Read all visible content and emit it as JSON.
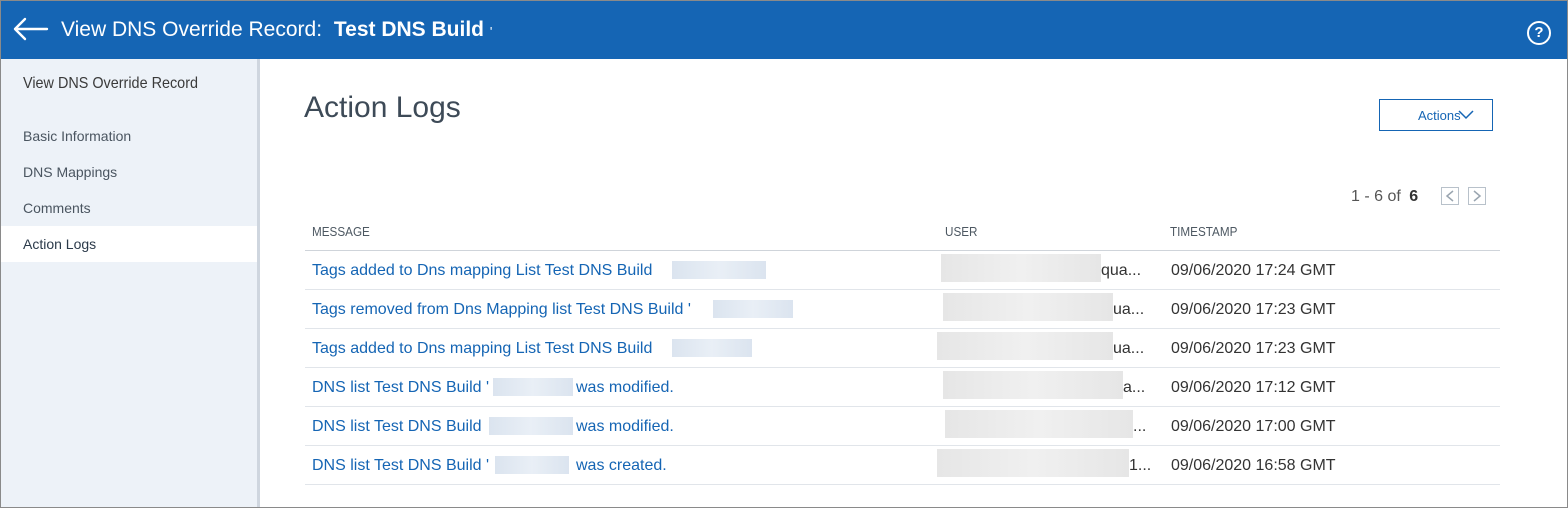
{
  "header": {
    "title_lead": "View DNS Override Record:",
    "title_name": "Test DNS Build",
    "title_suffix": "'",
    "back_icon": "arrow-left-icon",
    "help_icon": "question-circle-icon",
    "help_glyph": "?",
    "bg_color": "#1565b4"
  },
  "sidebar": {
    "heading": "View DNS Override Record",
    "items": [
      {
        "label": "Basic Information",
        "active": false
      },
      {
        "label": "DNS Mappings",
        "active": false
      },
      {
        "label": "Comments",
        "active": false
      },
      {
        "label": "Action Logs",
        "active": true
      }
    ]
  },
  "main": {
    "title": "Action Logs",
    "actions_button": "Actions",
    "actions_icon": "chevron-down-icon",
    "pager": {
      "range": "1 - 6 of",
      "total": "6",
      "prev_icon": "chevron-left-icon",
      "next_icon": "chevron-right-icon"
    },
    "columns": [
      "MESSAGE",
      "USER",
      "TIMESTAMP"
    ],
    "rows": [
      {
        "message": "Tags added to Dns mapping List Test DNS Build",
        "message_tail": "",
        "user_tail": "qua...",
        "timestamp": "09/06/2020 17:24 GMT"
      },
      {
        "message": "Tags removed from Dns Mapping list Test DNS Build '",
        "message_tail": "",
        "user_tail": "ua...",
        "timestamp": "09/06/2020 17:23 GMT"
      },
      {
        "message": "Tags added to Dns mapping List Test DNS Build",
        "message_tail": "",
        "user_tail": "ua...",
        "timestamp": "09/06/2020 17:23 GMT"
      },
      {
        "message": "DNS list Test DNS Build '",
        "message_tail": "was modified.",
        "user_tail": "a...",
        "timestamp": "09/06/2020 17:12 GMT"
      },
      {
        "message": "DNS list Test DNS Build",
        "message_tail": "was modified.",
        "user_tail": "...",
        "timestamp": "09/06/2020 17:00 GMT"
      },
      {
        "message": "DNS list Test DNS Build '",
        "message_tail": "was created.",
        "user_tail": "1...",
        "timestamp": "09/06/2020 16:58 GMT"
      }
    ]
  }
}
